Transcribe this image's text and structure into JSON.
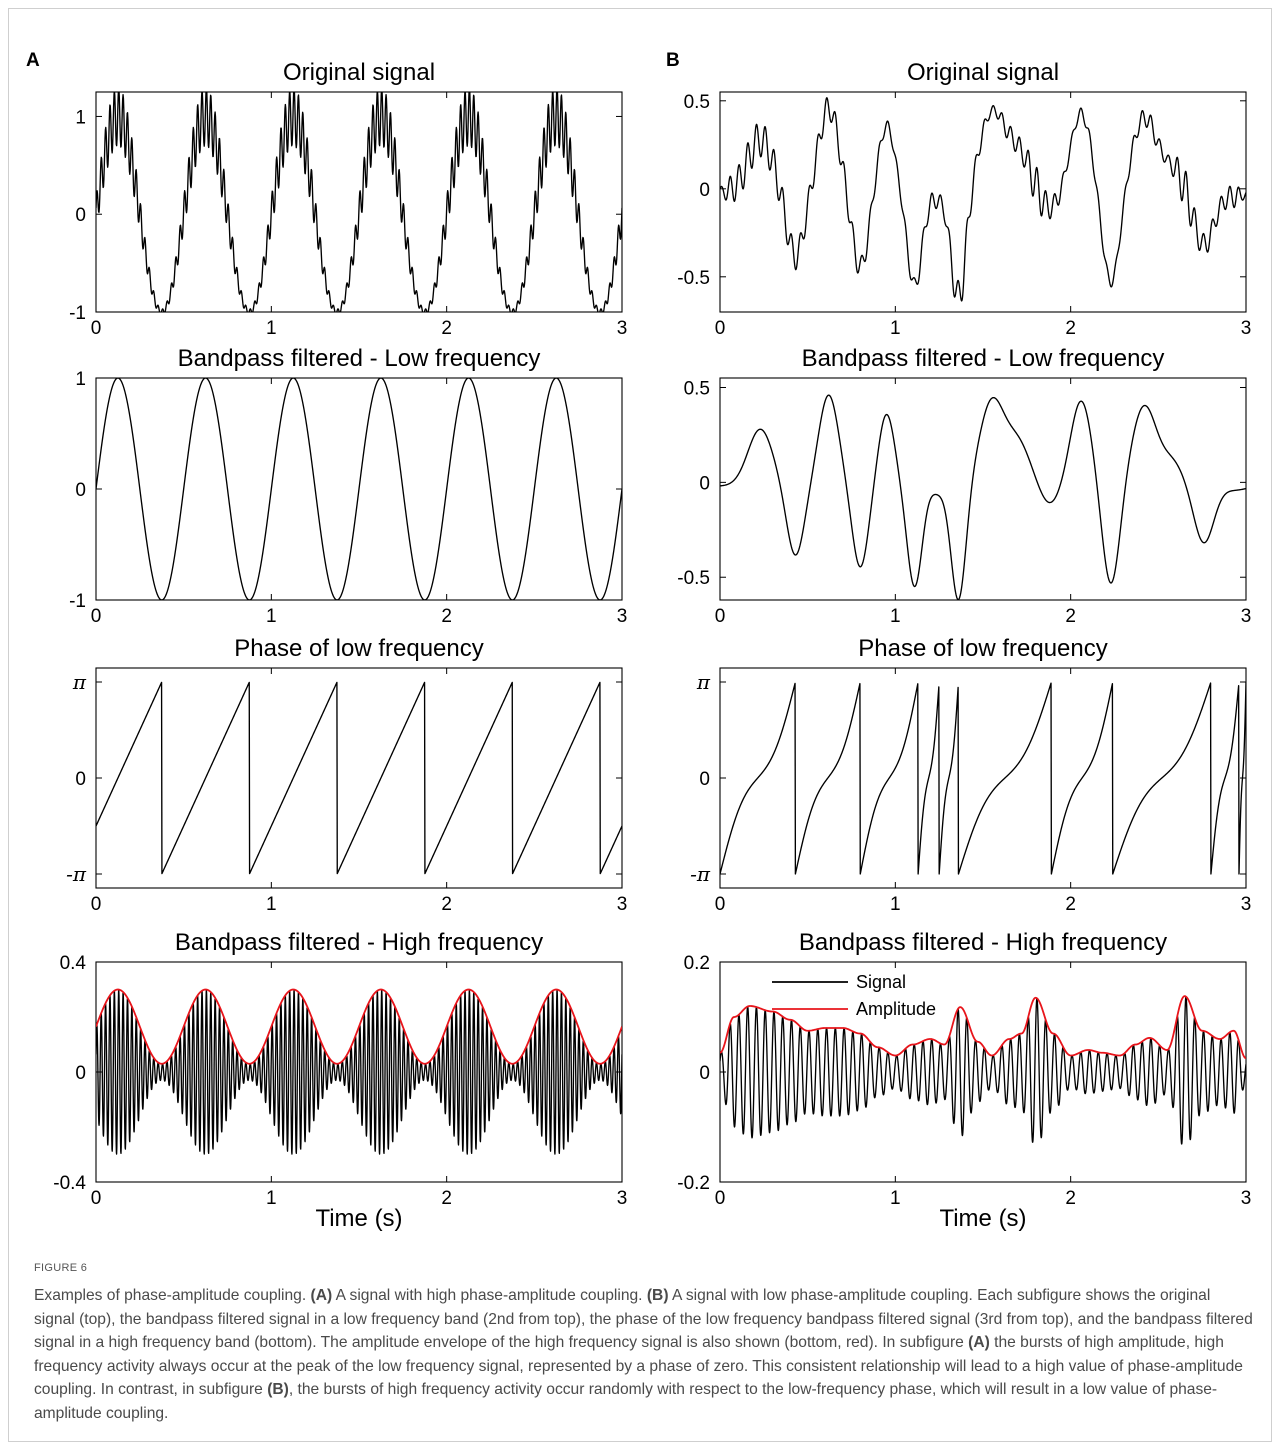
{
  "figure": {
    "label": "FIGURE 6",
    "caption": [
      {
        "t": "Examples of phase-amplitude coupling. "
      },
      {
        "t": "(A)",
        "b": true
      },
      {
        "t": " A signal with high phase-amplitude coupling. "
      },
      {
        "t": "(B)",
        "b": true
      },
      {
        "t": " A signal with low phase-amplitude coupling. Each subfigure shows the original signal (top), the bandpass filtered signal in a low frequency band (2nd from top), the phase of the low frequency bandpass filtered signal (3rd from top), and the bandpass filtered signal in a high frequency band (bottom). The amplitude envelope of the high frequency signal is also shown (bottom, red). In subfigure "
      },
      {
        "t": "(A)",
        "b": true
      },
      {
        "t": " the bursts of high amplitude, high frequency activity always occur at the peak of the low frequency signal, represented by a phase of zero. This consistent relationship will lead to a high value of phase-amplitude coupling. In contrast, in subfigure "
      },
      {
        "t": "(B)",
        "b": true
      },
      {
        "t": ", the bursts of high frequency activity occur randomly with respect to the low-frequency phase, which will result in a low value of phase-amplitude coupling."
      }
    ]
  },
  "colors": {
    "signal": "#000000",
    "amplitude": "#e8151b"
  },
  "chart_data": [
    {
      "panel": "A",
      "type": "line",
      "title": "Original signal",
      "xlim": [
        0,
        3
      ],
      "ylim": [
        -1,
        1.25
      ],
      "xticks": [
        "0",
        "1",
        "2",
        "3"
      ],
      "yticks": [
        {
          "v": -1,
          "l": "-1"
        },
        {
          "v": 0,
          "l": "0"
        },
        {
          "v": 1,
          "l": "1"
        }
      ],
      "series": [
        {
          "kind": "A_orig",
          "color": "#000000",
          "samples": 1400
        }
      ]
    },
    {
      "panel": "A",
      "type": "line",
      "title": "Bandpass filtered - Low frequency",
      "xlim": [
        0,
        3
      ],
      "ylim": [
        -1,
        1
      ],
      "xticks": [
        "0",
        "1",
        "2",
        "3"
      ],
      "yticks": [
        {
          "v": -1,
          "l": "-1"
        },
        {
          "v": 0,
          "l": "0"
        },
        {
          "v": 1,
          "l": "1"
        }
      ],
      "series": [
        {
          "kind": "A_low",
          "color": "#000000",
          "samples": 900
        }
      ]
    },
    {
      "panel": "A",
      "type": "line",
      "title": "Phase of low frequency",
      "xlim": [
        0,
        3
      ],
      "ylim": [
        -3.6,
        3.6
      ],
      "xticks": [
        "0",
        "1",
        "2",
        "3"
      ],
      "yticks": [
        {
          "v": -3.14159,
          "l": "-π"
        },
        {
          "v": 0,
          "l": "0"
        },
        {
          "v": 3.14159,
          "l": "π"
        }
      ],
      "series": [
        {
          "kind": "A_phase",
          "color": "#000000",
          "samples": 1500
        }
      ]
    },
    {
      "panel": "A",
      "type": "line",
      "title": "Bandpass filtered - High frequency",
      "xlim": [
        0,
        3
      ],
      "ylim": [
        -0.4,
        0.4
      ],
      "xticks": [
        "0",
        "1",
        "2",
        "3"
      ],
      "yticks": [
        {
          "v": -0.4,
          "l": "-0.4"
        },
        {
          "v": 0,
          "l": "0"
        },
        {
          "v": 0.4,
          "l": "0.4"
        }
      ],
      "xlabel": "Time (s)",
      "series": [
        {
          "kind": "A_high",
          "color": "#000000",
          "samples": 2400
        },
        {
          "kind": "A_env",
          "color": "#e8151b",
          "samples": 600
        }
      ]
    },
    {
      "panel": "B",
      "type": "line",
      "title": "Original signal",
      "xlim": [
        0,
        3
      ],
      "ylim": [
        -0.7,
        0.55
      ],
      "xticks": [
        "0",
        "1",
        "2",
        "3"
      ],
      "yticks": [
        {
          "v": -0.5,
          "l": "-0.5"
        },
        {
          "v": 0,
          "l": "0"
        },
        {
          "v": 0.5,
          "l": "0.5"
        }
      ],
      "series": [
        {
          "kind": "B_orig",
          "color": "#000000",
          "samples": 1500
        }
      ]
    },
    {
      "panel": "B",
      "type": "line",
      "title": "Bandpass filtered - Low frequency",
      "xlim": [
        0,
        3
      ],
      "ylim": [
        -0.62,
        0.55
      ],
      "xticks": [
        "0",
        "1",
        "2",
        "3"
      ],
      "yticks": [
        {
          "v": -0.5,
          "l": "-0.5"
        },
        {
          "v": 0,
          "l": "0"
        },
        {
          "v": 0.5,
          "l": "0.5"
        }
      ],
      "series": [
        {
          "kind": "B_low",
          "color": "#000000",
          "samples": 900
        }
      ]
    },
    {
      "panel": "B",
      "type": "line",
      "title": "Phase of low frequency",
      "xlim": [
        0,
        3
      ],
      "ylim": [
        -3.6,
        3.6
      ],
      "xticks": [
        "0",
        "1",
        "2",
        "3"
      ],
      "yticks": [
        {
          "v": -3.14159,
          "l": "-π"
        },
        {
          "v": 0,
          "l": "0"
        },
        {
          "v": 3.14159,
          "l": "π"
        }
      ],
      "series": [
        {
          "kind": "B_phase",
          "color": "#000000",
          "samples": 1500
        }
      ]
    },
    {
      "panel": "B",
      "type": "line",
      "title": "Bandpass filtered - High frequency",
      "xlim": [
        0,
        3
      ],
      "ylim": [
        -0.2,
        0.2
      ],
      "xticks": [
        "0",
        "1",
        "2",
        "3"
      ],
      "yticks": [
        {
          "v": -0.2,
          "l": "-0.2"
        },
        {
          "v": 0,
          "l": "0"
        },
        {
          "v": 0.2,
          "l": "0.2"
        }
      ],
      "xlabel": "Time (s)",
      "legend": [
        {
          "name": "Signal",
          "color": "#000000"
        },
        {
          "name": "Amplitude",
          "color": "#e8151b"
        }
      ],
      "series": [
        {
          "kind": "B_high",
          "color": "#000000",
          "samples": 2400
        },
        {
          "kind": "B_env",
          "color": "#e8151b",
          "samples": 600
        }
      ]
    }
  ]
}
